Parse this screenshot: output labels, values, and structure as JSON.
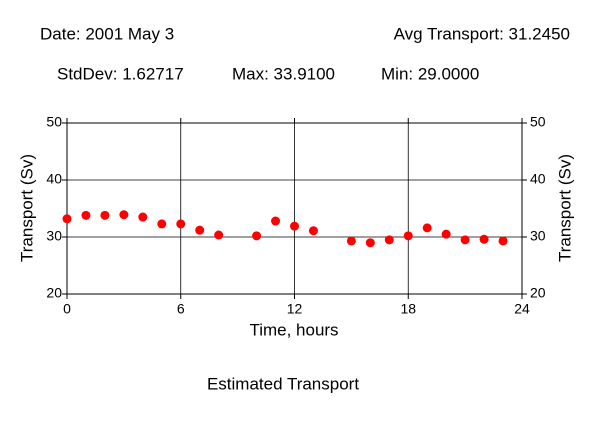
{
  "chart_data": {
    "type": "scatter",
    "annotations": [
      "Date: 2001 May 3",
      "Avg Transport: 31.2450",
      "StdDev: 1.62717",
      "Max: 33.9100",
      "Min: 29.0000"
    ],
    "title": "Estimated Transport",
    "xlabel": "Time, hours",
    "ylabel": "Transport (Sv)",
    "y2label": "Transport (Sv)",
    "x": [
      0,
      1,
      2,
      3,
      4,
      5,
      6,
      7,
      8,
      10,
      11,
      12,
      13,
      15,
      16,
      17,
      18,
      19,
      20,
      21,
      22,
      23
    ],
    "values": [
      33.2,
      33.8,
      33.8,
      33.91,
      33.5,
      32.3,
      32.3,
      31.2,
      30.35,
      30.2,
      32.8,
      31.9,
      31.1,
      29.3,
      29.0,
      29.5,
      30.2,
      31.6,
      30.5,
      29.5,
      29.6,
      29.3
    ],
    "color": "#ff0000",
    "xlim": [
      0,
      24
    ],
    "xticks": [
      0,
      6,
      12,
      18,
      24
    ],
    "ylim": [
      20,
      50
    ],
    "yticks": [
      20,
      30,
      40,
      50
    ],
    "y2lim": [
      20,
      50
    ],
    "y2ticks": [
      20,
      30,
      40,
      50
    ],
    "grid": true
  }
}
